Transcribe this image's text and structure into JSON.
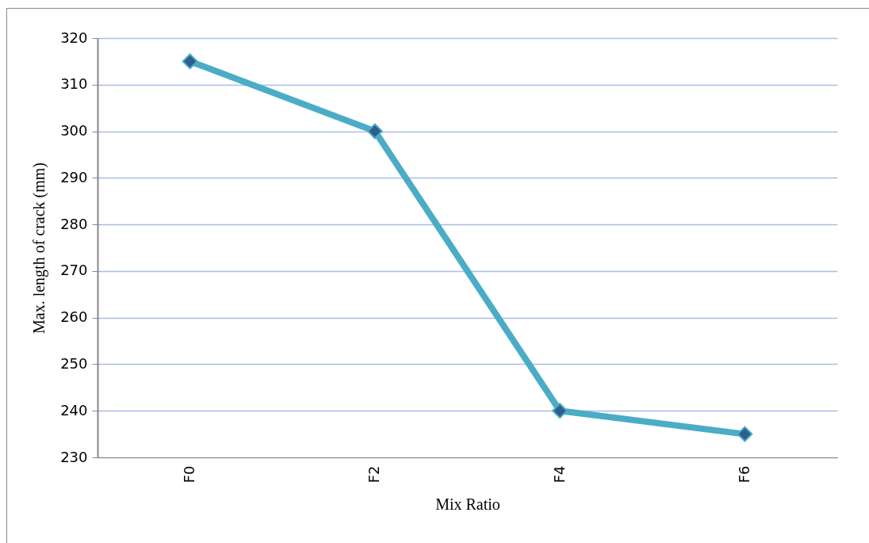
{
  "chart_data": {
    "type": "line",
    "xlabel": "Mix Ratio",
    "ylabel": "Max. length of  crack (mm)",
    "categories": [
      "F0",
      "F2",
      "F4",
      "F6"
    ],
    "series": [
      {
        "color": "#4bacc6",
        "values": [
          315,
          300,
          240,
          235
        ]
      }
    ],
    "ylim": [
      230,
      320
    ],
    "yticks": [
      230,
      240,
      250,
      260,
      270,
      280,
      290,
      300,
      310,
      320
    ],
    "grid": "y",
    "marker": "diamond",
    "line_style": "solid",
    "legend": false
  }
}
